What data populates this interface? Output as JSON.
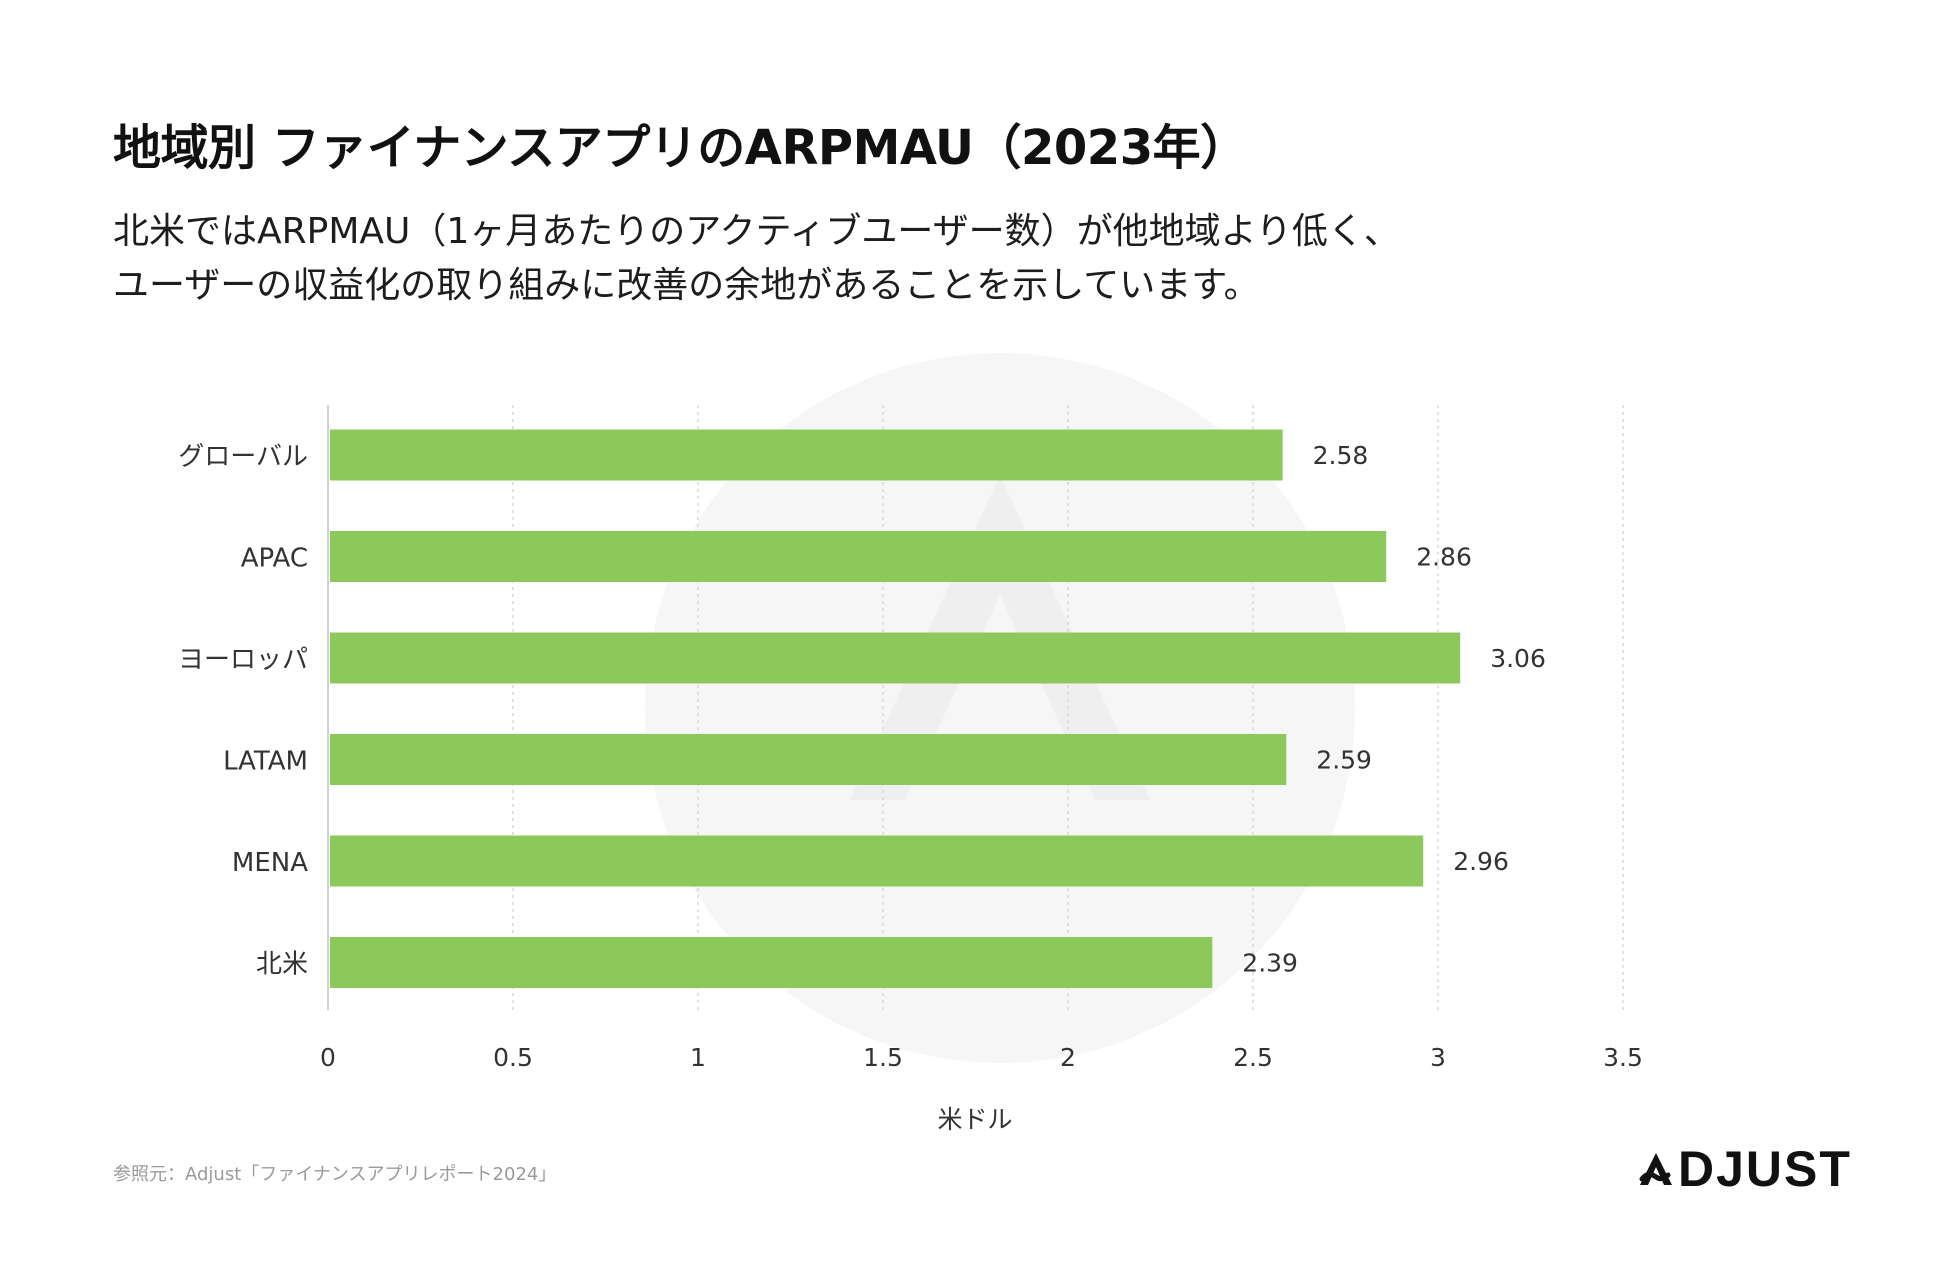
{
  "header": {
    "title": "地域別 ファイナンスアプリのARPMAU（2023年）",
    "subtitle_line1": "北米ではARPMAU（1ヶ月あたりのアクティブユーザー数）が他地域より低く、",
    "subtitle_line2": "ユーザーの収益化の取り組みに改善の余地があることを示しています。"
  },
  "chart_data": {
    "type": "bar",
    "orientation": "horizontal",
    "categories": [
      "グローバル",
      "APAC",
      "ヨーロッパ",
      "LATAM",
      "MENA",
      "北米"
    ],
    "values": [
      2.58,
      2.86,
      3.06,
      2.59,
      2.96,
      2.39
    ],
    "value_labels": [
      "2.58",
      "2.86",
      "3.06",
      "2.59",
      "2.96",
      "2.39"
    ],
    "xlabel": "米ドル",
    "ylabel": "",
    "xlim": [
      0,
      3.5
    ],
    "xticks": [
      0,
      0.5,
      1,
      1.5,
      2,
      2.5,
      3,
      3.5
    ],
    "xtick_labels": [
      "0",
      "0.5",
      "1",
      "1.5",
      "2",
      "2.5",
      "3",
      "3.5"
    ],
    "grid": true,
    "bar_color": "#8dc95a"
  },
  "footer": {
    "source": "参照元：Adjust「ファイナンスアプリレポート2024」",
    "logo_text": "DJUST",
    "logo_name": "adjust-logo-icon"
  },
  "colors": {
    "bar": "#8dc95a",
    "grid": "#d8d8d8",
    "axis": "#d0d0d0",
    "watermark": "#f6f6f6",
    "text": "#141414"
  }
}
